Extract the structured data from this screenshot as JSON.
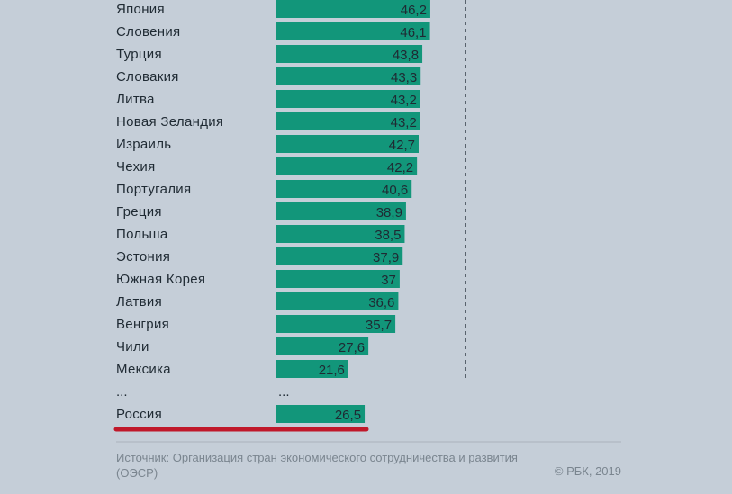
{
  "chart_data": {
    "type": "bar",
    "orientation": "horizontal",
    "categories": [
      "Япония",
      "Словения",
      "Турция",
      "Словакия",
      "Литва",
      "Новая Зеландия",
      "Израиль",
      "Чехия",
      "Португалия",
      "Греция",
      "Польша",
      "Эстония",
      "Южная Корея",
      "Латвия",
      "Венгрия",
      "Чили",
      "Мексика"
    ],
    "values": [
      46.2,
      46.1,
      43.8,
      43.3,
      43.2,
      43.2,
      42.7,
      42.2,
      40.6,
      38.9,
      38.5,
      37.9,
      37,
      36.6,
      35.7,
      27.6,
      21.6
    ],
    "value_labels": [
      "46,2",
      "46,1",
      "43,8",
      "43,3",
      "43,2",
      "43,2",
      "42,7",
      "42,2",
      "40,6",
      "38,9",
      "38,5",
      "37,9",
      "37",
      "36,6",
      "35,7",
      "27,6",
      "21,6"
    ],
    "ellipsis_label": "...",
    "highlight": {
      "category": "Россия",
      "value": 26.5,
      "value_label": "26,5",
      "underline_color": "#c0182a"
    },
    "bar_color": "#12967a",
    "reference_line": "dashed-vertical",
    "grid": false
  },
  "footer": {
    "source": "Источник: Организация стран экономического сотрудничества и развития (ОЭСР)",
    "copyright": "© РБК, 2019"
  }
}
